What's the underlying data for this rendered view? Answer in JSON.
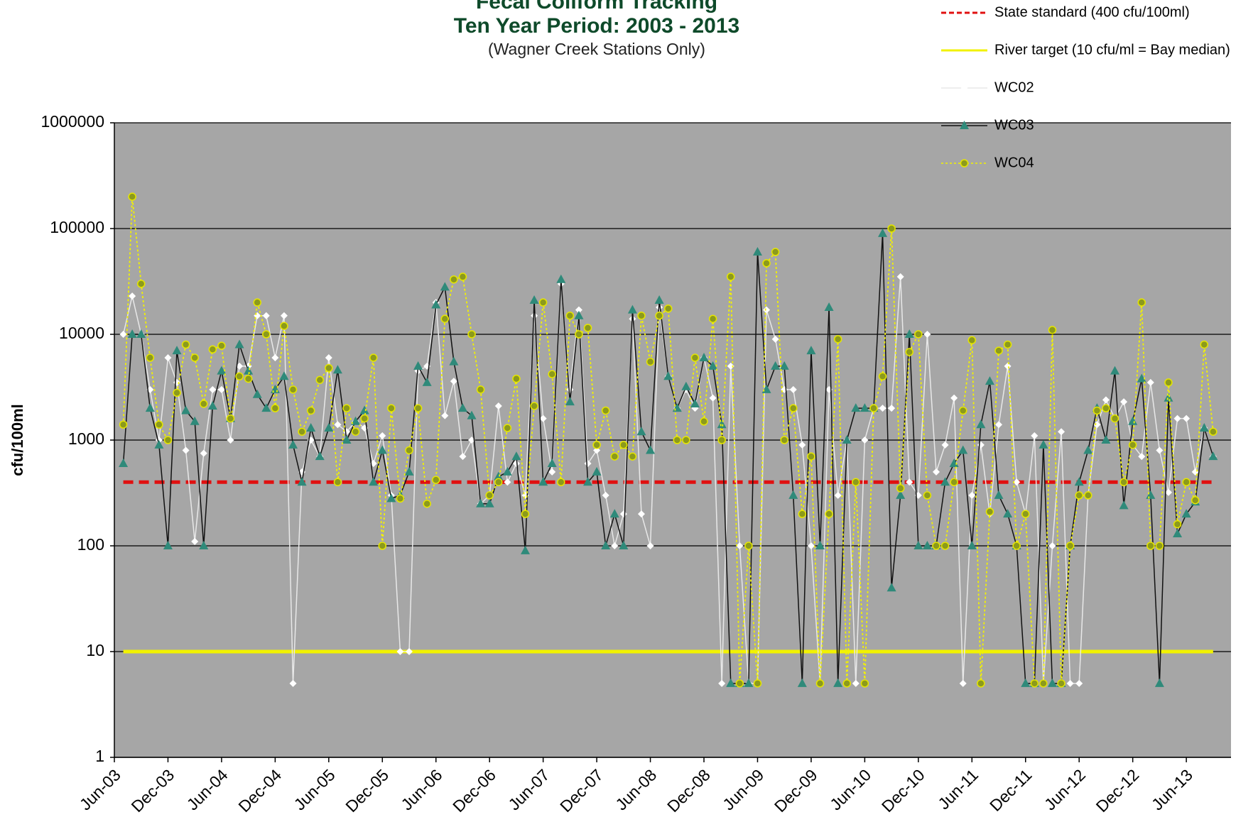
{
  "chart_data": {
    "type": "line",
    "title": "Fecal Coliform  Tracking",
    "subtitle": "Ten Year Period:  2003 -  2013",
    "note": "(Wagner Creek Stations Only)",
    "y_label": "cfu/100ml",
    "log_scale": true,
    "grid": true,
    "legend_position": "top-right",
    "ylim": [
      1,
      1000000
    ],
    "yticks": [
      1,
      10,
      100,
      1000,
      10000,
      100000,
      1000000
    ],
    "categories": [
      "Jun-03",
      null,
      null,
      null,
      null,
      null,
      "Dec-03",
      null,
      null,
      null,
      null,
      null,
      "Jun-04",
      null,
      null,
      null,
      null,
      null,
      "Dec-04",
      null,
      null,
      null,
      null,
      null,
      "Jun-05",
      null,
      null,
      null,
      null,
      null,
      "Dec-05",
      null,
      null,
      null,
      null,
      null,
      "Jun-06",
      null,
      null,
      null,
      null,
      null,
      "Dec-06",
      null,
      null,
      null,
      null,
      null,
      "Jun-07",
      null,
      null,
      null,
      null,
      null,
      "Dec-07",
      null,
      null,
      null,
      null,
      null,
      "Jun-08",
      null,
      null,
      null,
      null,
      null,
      "Dec-08",
      null,
      null,
      null,
      null,
      null,
      "Jun-09",
      null,
      null,
      null,
      null,
      null,
      "Dec-09",
      null,
      null,
      null,
      null,
      null,
      "Jun-10",
      null,
      null,
      null,
      null,
      null,
      "Dec-10",
      null,
      null,
      null,
      null,
      null,
      "Jun-11",
      null,
      null,
      null,
      null,
      null,
      "Dec-11",
      null,
      null,
      null,
      null,
      null,
      "Jun-12",
      null,
      null,
      null,
      null,
      null,
      "Dec-12",
      null,
      null,
      null,
      null,
      null,
      "Jun-13",
      null,
      null,
      null,
      null,
      null
    ],
    "reference_lines": [
      {
        "name": "State standard   (400 cfu/100ml)",
        "value": 400,
        "color": "#e01010",
        "dash": "14 8"
      },
      {
        "name": "River target (10 cfu/ml = Bay median)",
        "value": 10,
        "color": "#f2f200",
        "dash": "none"
      }
    ],
    "series": [
      {
        "name": "WC02",
        "color": "#e8e8e8",
        "marker": "diamond",
        "marker_color": "#ffffff",
        "dash": "none",
        "values": [
          null,
          10000,
          23000,
          10000,
          3000,
          1000,
          6000,
          3500,
          800,
          110,
          750,
          3000,
          3000,
          1000,
          5000,
          5000,
          15000,
          15000,
          6000,
          15000,
          5,
          500,
          1000,
          700,
          6000,
          1400,
          1200,
          1500,
          1300,
          600,
          1100,
          300,
          10,
          10,
          4500,
          5000,
          20000,
          1700,
          3600,
          700,
          1000,
          250,
          300,
          2100,
          400,
          600,
          300,
          15000,
          1600,
          500,
          30000,
          3000,
          17000,
          600,
          800,
          300,
          100,
          200,
          14000,
          200,
          100,
          18000,
          4000,
          2000,
          3000,
          2000,
          6000,
          2500,
          5,
          5000,
          100,
          5,
          5,
          17000,
          9000,
          3000,
          3000,
          900,
          100,
          5,
          3000,
          300,
          1000,
          5,
          1000,
          2000,
          2000,
          2000,
          35000,
          400,
          300,
          10000,
          500,
          900,
          2500,
          5,
          300,
          900,
          200,
          1400,
          5000,
          400,
          200,
          1100,
          5,
          100,
          1200,
          5,
          5,
          300,
          1400,
          2400,
          1600,
          2300,
          900,
          700,
          3500,
          800,
          320,
          1600,
          1600,
          500,
          1300,
          700,
          null,
          null
        ]
      },
      {
        "name": "WC03",
        "color": "#111111",
        "marker": "triangle",
        "marker_color": "#2f8a7a",
        "dash": "none",
        "values": [
          null,
          600,
          10000,
          10000,
          2000,
          900,
          100,
          7000,
          1900,
          1500,
          100,
          2100,
          4500,
          1600,
          8000,
          4500,
          2700,
          2000,
          3000,
          4000,
          900,
          400,
          1300,
          700,
          1300,
          4600,
          1000,
          1500,
          1900,
          400,
          800,
          280,
          300,
          500,
          5000,
          3500,
          19000,
          28000,
          5500,
          2000,
          1700,
          250,
          250,
          450,
          500,
          700,
          90,
          21000,
          400,
          600,
          33000,
          2300,
          15000,
          400,
          500,
          100,
          200,
          100,
          17000,
          1200,
          800,
          21000,
          4000,
          2000,
          3200,
          2200,
          6000,
          5000,
          1400,
          5,
          5,
          5,
          60000,
          3000,
          5000,
          5000,
          300,
          5,
          7000,
          100,
          18000,
          5,
          1000,
          2000,
          2000,
          2000,
          90000,
          40,
          300,
          10000,
          100,
          100,
          100,
          400,
          600,
          800,
          100,
          1400,
          3600,
          300,
          200,
          100,
          5,
          5,
          900,
          5,
          5,
          100,
          400,
          800,
          2000,
          1000,
          4500,
          240,
          1500,
          3800,
          300,
          5,
          2500,
          130,
          200,
          260,
          1300,
          700,
          null,
          null
        ]
      },
      {
        "name": "WC04",
        "color": "#f2f200",
        "marker": "circle",
        "marker_color": "#8c9a1c",
        "dash": "3 3",
        "values": [
          null,
          1400,
          200000,
          30000,
          6000,
          1400,
          1000,
          2800,
          8000,
          6000,
          2200,
          7200,
          7800,
          1600,
          4000,
          3800,
          20000,
          10000,
          2000,
          12000,
          3000,
          1200,
          1900,
          3700,
          4800,
          400,
          2000,
          1200,
          1600,
          6000,
          100,
          2000,
          280,
          800,
          2000,
          250,
          420,
          14000,
          33000,
          35000,
          10000,
          3000,
          300,
          400,
          1300,
          3800,
          200,
          2100,
          20000,
          4200,
          400,
          15000,
          10000,
          11500,
          900,
          1900,
          700,
          900,
          700,
          15000,
          5500,
          15000,
          17500,
          1000,
          1000,
          6000,
          1500,
          14000,
          1000,
          35000,
          5,
          100,
          5,
          47000,
          60000,
          1000,
          2000,
          200,
          700,
          5,
          200,
          9000,
          5,
          400,
          5,
          2000,
          4000,
          100000,
          350,
          6800,
          10000,
          300,
          100,
          100,
          400,
          1900,
          8800,
          5,
          210,
          7000,
          8000,
          100,
          200,
          5,
          5,
          11000,
          5,
          100,
          300,
          300,
          1900,
          2000,
          1600,
          400,
          900,
          20000,
          100,
          100,
          3500,
          160,
          400,
          270,
          8000,
          1200,
          null,
          null
        ]
      }
    ]
  }
}
